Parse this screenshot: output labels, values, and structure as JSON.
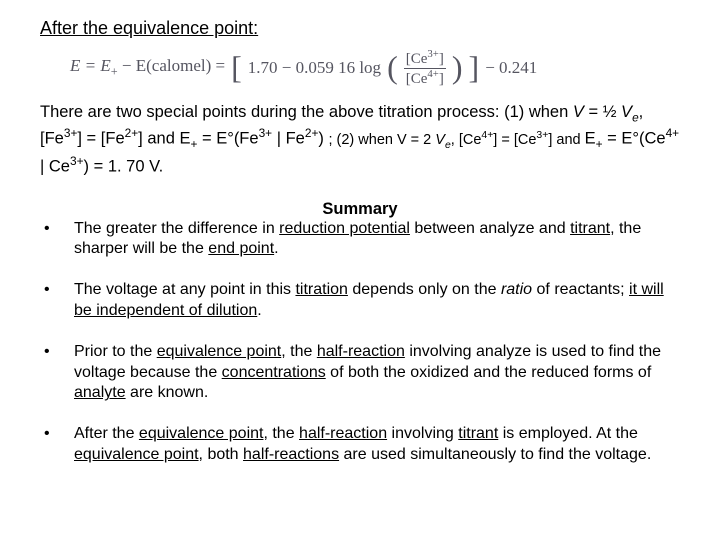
{
  "heading": "After the equivalence point:",
  "eq": {
    "lhs1": "E = E",
    "lhs1_sub": "+",
    "lhs2": " − E(calomel) = ",
    "const1": "1.70 − 0.059 16 log",
    "num_a": "[Ce",
    "num_sup": "3+",
    "num_b": "]",
    "den_a": "[Ce",
    "den_sup": "4+",
    "den_b": "]",
    "tail": " − 0.241"
  },
  "para1": {
    "a": "There are two special points during the above titration process: (1) when ",
    "v": "V",
    "eq1": " = ½ ",
    "v2": "V",
    "e": "e",
    "b": ", [Fe",
    "s3": "3+",
    "c": "] = [Fe",
    "s2": "2+",
    "d": "] and E",
    "plus1": "+",
    "e2": " = E°(Fe",
    "s3b": "3+",
    "f": " | Fe",
    "s2b": "2+",
    "g": ") ",
    "sm1": "; (2) when V = 2 ",
    "sm_v": "V",
    "sm_e": "e",
    "sm2": ", [Ce",
    "s4": "4+",
    "sm3": "] = [Ce",
    "s3c": "3+",
    "sm4": "] and ",
    "h": " E",
    "plus2": "+",
    "i": " = E°(Ce",
    "s4b": "4+",
    "j": " | Ce",
    "s3d": "3+",
    "k": ") = 1. 70 V."
  },
  "summary_title": "Summary",
  "bullets": [
    {
      "parts": [
        {
          "t": "The greater the difference in "
        },
        {
          "t": "reduction potential",
          "u": true
        },
        {
          "t": " between analyze and "
        },
        {
          "t": "titrant",
          "u": true
        },
        {
          "t": ", the sharper will be the "
        },
        {
          "t": "end point",
          "u": true
        },
        {
          "t": "."
        }
      ]
    },
    {
      "parts": [
        {
          "t": "The voltage at any point in this "
        },
        {
          "t": "titration",
          "u": true
        },
        {
          "t": " depends only on the "
        },
        {
          "t": "ratio",
          "i": true
        },
        {
          "t": " of reactants; "
        },
        {
          "t": "it will be independent of dilution",
          "u": true
        },
        {
          "t": "."
        }
      ]
    },
    {
      "parts": [
        {
          "t": "Prior to the "
        },
        {
          "t": "equivalence point",
          "u": true
        },
        {
          "t": ", the "
        },
        {
          "t": "half-reaction",
          "u": true
        },
        {
          "t": " involving analyze is used to find the voltage because the "
        },
        {
          "t": "concentrations",
          "u": true
        },
        {
          "t": " of both the oxidized and the reduced forms of "
        },
        {
          "t": "analyte",
          "u": true
        },
        {
          "t": " are known."
        }
      ]
    },
    {
      "parts": [
        {
          "t": "After the "
        },
        {
          "t": "equivalence point",
          "u": true
        },
        {
          "t": ", the "
        },
        {
          "t": "half-reaction",
          "u": true
        },
        {
          "t": " involving "
        },
        {
          "t": "titrant",
          "u": true
        },
        {
          "t": " is employed. At the "
        },
        {
          "t": "equivalence point",
          "u": true
        },
        {
          "t": ", both "
        },
        {
          "t": "half-reactions",
          "u": true
        },
        {
          "t": " are used simultaneously to find the voltage."
        }
      ]
    }
  ]
}
